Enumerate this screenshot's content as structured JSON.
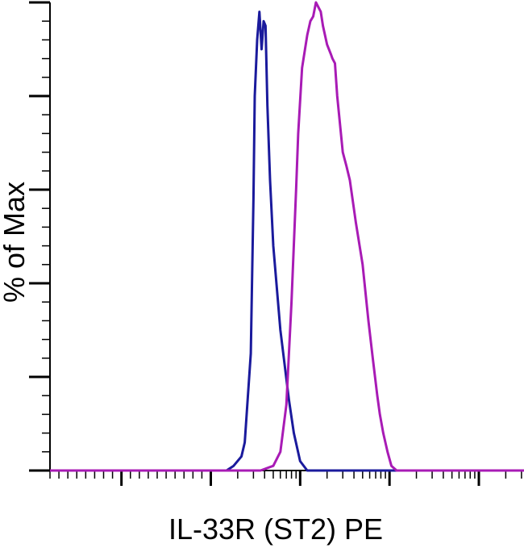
{
  "chart_data": {
    "type": "line",
    "title": "",
    "xlabel": "IL-33R (ST2) PE",
    "ylabel": "% of Max",
    "x_scale": "log",
    "xlim": [
      -80,
      320000
    ],
    "ylim": [
      0,
      100
    ],
    "grid": false,
    "legend": "none",
    "x_tick_labels_shown": false,
    "y_tick_labels_shown": false,
    "series": [
      {
        "color": "#1a1a9c",
        "points": [
          [
            -80,
            0
          ],
          [
            150,
            0
          ],
          [
            180,
            1
          ],
          [
            220,
            3
          ],
          [
            240,
            6
          ],
          [
            280,
            25
          ],
          [
            300,
            58
          ],
          [
            310,
            80
          ],
          [
            330,
            92
          ],
          [
            350,
            98
          ],
          [
            370,
            90
          ],
          [
            390,
            96
          ],
          [
            410,
            95
          ],
          [
            430,
            78
          ],
          [
            460,
            62
          ],
          [
            500,
            48
          ],
          [
            600,
            30
          ],
          [
            750,
            15
          ],
          [
            850,
            8
          ],
          [
            1000,
            2
          ],
          [
            1200,
            0
          ],
          [
            320000,
            0
          ]
        ]
      },
      {
        "color": "#a81bb5",
        "points": [
          [
            -80,
            0
          ],
          [
            360,
            0
          ],
          [
            500,
            1
          ],
          [
            600,
            4
          ],
          [
            700,
            14
          ],
          [
            800,
            36
          ],
          [
            900,
            60
          ],
          [
            950,
            72
          ],
          [
            1050,
            86
          ],
          [
            1200,
            93
          ],
          [
            1300,
            96
          ],
          [
            1400,
            97
          ],
          [
            1500,
            100
          ],
          [
            1700,
            98
          ],
          [
            1800,
            95
          ],
          [
            2000,
            91
          ],
          [
            2200,
            89
          ],
          [
            2300,
            88
          ],
          [
            2450,
            87
          ],
          [
            2600,
            80
          ],
          [
            3000,
            68
          ],
          [
            3300,
            65
          ],
          [
            3600,
            62
          ],
          [
            4200,
            53
          ],
          [
            5000,
            44
          ],
          [
            5800,
            32
          ],
          [
            6500,
            24
          ],
          [
            7300,
            16
          ],
          [
            7800,
            12
          ],
          [
            8500,
            8
          ],
          [
            9500,
            4
          ],
          [
            10500,
            1
          ],
          [
            12000,
            0
          ],
          [
            320000,
            0
          ]
        ]
      }
    ]
  }
}
